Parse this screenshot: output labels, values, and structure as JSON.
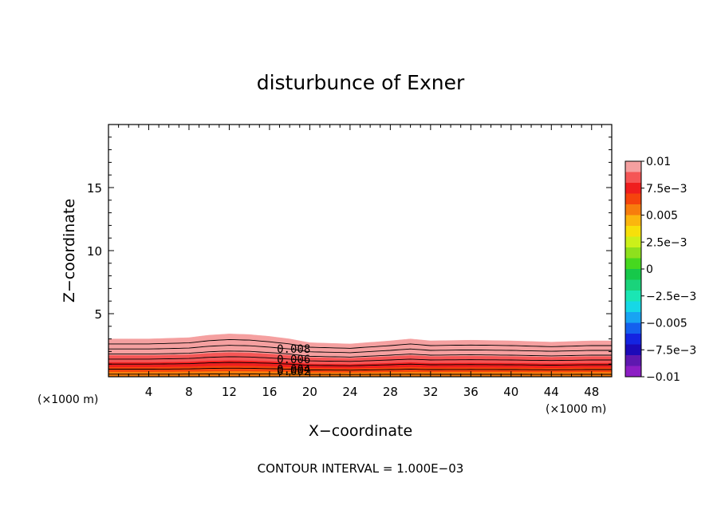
{
  "chart_data": {
    "type": "contour",
    "title": "disturbunce of Exner",
    "xlabel": "X−coordinate",
    "ylabel": "Z−coordinate",
    "x_unit_left": "(×1000 m)",
    "x_unit_right": "(×1000 m)",
    "footer": "CONTOUR INTERVAL = 1.000E−03",
    "xlim": [
      0,
      50
    ],
    "ylim": [
      0,
      20
    ],
    "x_ticks": [
      4,
      8,
      12,
      16,
      20,
      24,
      28,
      32,
      36,
      40,
      44,
      48
    ],
    "y_ticks": [
      5,
      10,
      15
    ],
    "colorbar": {
      "range": [
        -0.01,
        0.01
      ],
      "labels": [
        "0.01",
        "7.5e−3",
        "0.005",
        "2.5e−3",
        "0",
        "−2.5e−3",
        "−0.005",
        "−7.5e−3",
        "−0.01"
      ],
      "label_values": [
        0.01,
        0.0075,
        0.005,
        0.0025,
        0,
        -0.0025,
        -0.005,
        -0.0075,
        -0.01
      ],
      "colors": [
        "#f5a0a0",
        "#f55656",
        "#ef1e1e",
        "#f5440d",
        "#f77d0d",
        "#fbb60e",
        "#f7e00a",
        "#ccf01a",
        "#8ee01d",
        "#46d81f",
        "#16c84a",
        "#1ad37b",
        "#1ae6b4",
        "#16d8e6",
        "#18a4f3",
        "#1460ee",
        "#1424e1",
        "#1c0ab8",
        "#5e18b0",
        "#8c1ec4"
      ]
    },
    "contour_labels": [
      "0.008",
      "0.006",
      "0.004",
      "0.002"
    ],
    "fields": {
      "x": [
        0,
        4,
        8,
        10,
        12,
        14,
        16,
        18,
        20,
        24,
        28,
        30,
        32,
        36,
        40,
        44,
        48,
        50
      ],
      "top_height": [
        3.0,
        3.0,
        3.1,
        3.3,
        3.4,
        3.35,
        3.2,
        3.0,
        2.7,
        2.6,
        2.85,
        3.0,
        2.85,
        2.9,
        2.85,
        2.75,
        2.85,
        2.85
      ],
      "bottom_value": 0.0025,
      "top_value": 0.01
    }
  }
}
